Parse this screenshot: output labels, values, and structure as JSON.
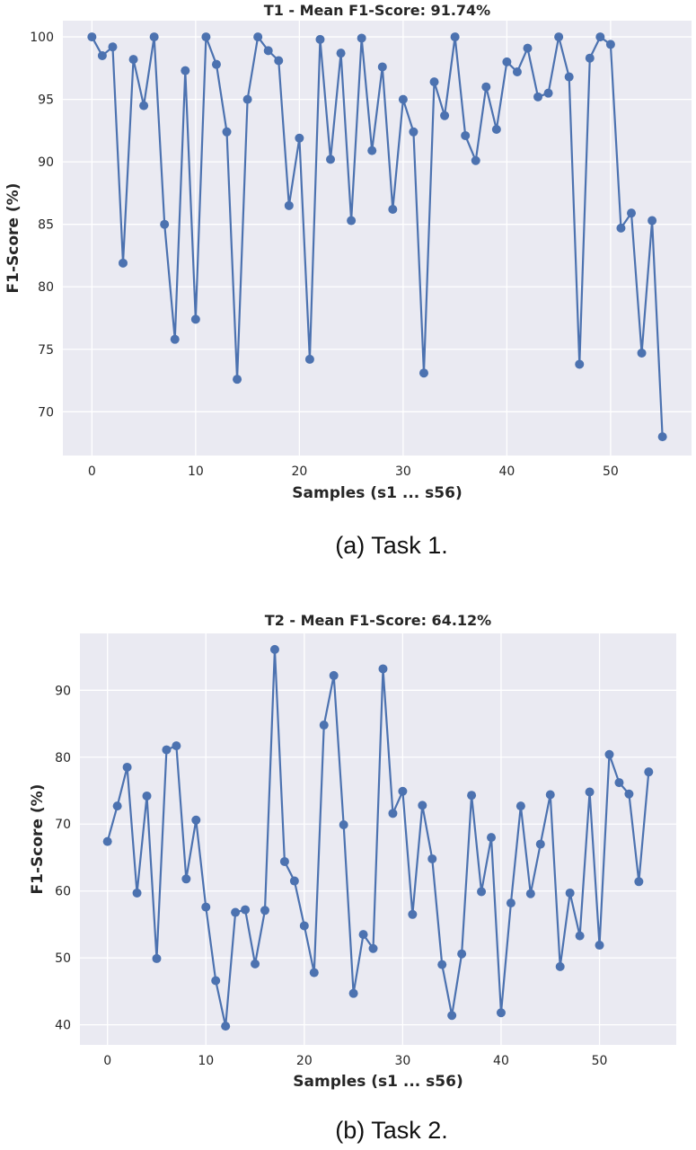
{
  "chart_data": [
    {
      "type": "line",
      "title": "T1 - Mean F1-Score: 91.74%",
      "xlabel": "Samples (s1 ... s56)",
      "ylabel": "F1-Score (%)",
      "xlim": [
        -2.8,
        57.8
      ],
      "ylim": [
        66.5,
        101.3
      ],
      "xticks": [
        0,
        10,
        20,
        30,
        40,
        50
      ],
      "yticks": [
        70,
        75,
        80,
        85,
        90,
        95,
        100
      ],
      "grid": true,
      "legend": "none",
      "series_color": "#4c72b0",
      "background": "#eaeaf2",
      "x": [
        0,
        1,
        2,
        3,
        4,
        5,
        6,
        7,
        8,
        9,
        10,
        11,
        12,
        13,
        14,
        15,
        16,
        17,
        18,
        19,
        20,
        21,
        22,
        23,
        24,
        25,
        26,
        27,
        28,
        29,
        30,
        31,
        32,
        33,
        34,
        35,
        36,
        37,
        38,
        39,
        40,
        41,
        42,
        43,
        44,
        45,
        46,
        47,
        48,
        49,
        50,
        51,
        52,
        53,
        54,
        55
      ],
      "series": [
        {
          "values": [
            100,
            98.5,
            99.2,
            81.9,
            98.2,
            94.5,
            100,
            85.0,
            75.8,
            97.3,
            77.4,
            100,
            97.8,
            92.4,
            72.6,
            95.0,
            100,
            98.9,
            98.1,
            86.5,
            91.9,
            74.2,
            99.8,
            90.2,
            98.7,
            85.3,
            99.9,
            90.9,
            97.6,
            86.2,
            95.0,
            92.4,
            73.1,
            96.4,
            93.7,
            100,
            92.1,
            90.1,
            96.0,
            92.6,
            98.0,
            97.2,
            99.1,
            95.2,
            95.5,
            100,
            96.8,
            73.8,
            98.3,
            100,
            99.4,
            84.7,
            85.9,
            74.7,
            85.3,
            68.0
          ]
        }
      ]
    },
    {
      "type": "line",
      "title": "T2 - Mean F1-Score: 64.12%",
      "xlabel": "Samples (s1 ... s56)",
      "ylabel": "F1-Score (%)",
      "xlim": [
        -2.8,
        57.8
      ],
      "ylim": [
        37.0,
        98.5
      ],
      "xticks": [
        0,
        10,
        20,
        30,
        40,
        50
      ],
      "yticks": [
        40,
        50,
        60,
        70,
        80,
        90
      ],
      "grid": true,
      "legend": "none",
      "series_color": "#4c72b0",
      "background": "#eaeaf2",
      "x": [
        0,
        1,
        2,
        3,
        4,
        5,
        6,
        7,
        8,
        9,
        10,
        11,
        12,
        13,
        14,
        15,
        16,
        17,
        18,
        19,
        20,
        21,
        22,
        23,
        24,
        25,
        26,
        27,
        28,
        29,
        30,
        31,
        32,
        33,
        34,
        35,
        36,
        37,
        38,
        39,
        40,
        41,
        42,
        43,
        44,
        45,
        46,
        47,
        48,
        49,
        50,
        51,
        52,
        53,
        54,
        55
      ],
      "series": [
        {
          "values": [
            67.4,
            72.7,
            78.5,
            59.7,
            74.2,
            49.9,
            81.1,
            81.7,
            61.8,
            70.6,
            57.6,
            46.6,
            39.8,
            56.8,
            57.2,
            49.1,
            57.1,
            96.1,
            64.4,
            61.5,
            54.8,
            47.8,
            84.8,
            92.2,
            69.9,
            44.7,
            53.5,
            51.4,
            93.2,
            71.6,
            74.9,
            56.5,
            72.8,
            64.8,
            49.0,
            41.4,
            50.6,
            74.3,
            59.9,
            68.0,
            41.8,
            58.2,
            72.7,
            59.6,
            67.0,
            74.4,
            48.7,
            59.7,
            53.3,
            74.8,
            51.9,
            80.4,
            76.2,
            74.5,
            61.4,
            77.8
          ]
        }
      ]
    }
  ],
  "captions": {
    "a": "(a) Task 1.",
    "b": "(b) Task 2."
  }
}
